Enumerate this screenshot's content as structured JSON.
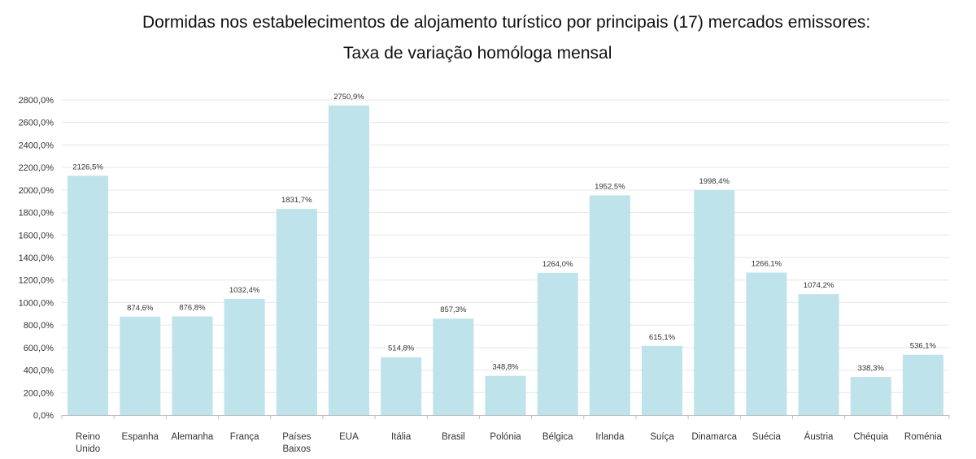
{
  "chart_data": {
    "type": "bar",
    "title": "Dormidas nos estabelecimentos de alojamento turístico por principais (17) mercados emissores:",
    "subtitle": "Taxa de variação homóloga mensal",
    "xlabel": "",
    "ylabel": "",
    "categories": [
      "Reino Unido",
      "Espanha",
      "Alemanha",
      "França",
      "Países Baixos",
      "EUA",
      "Itália",
      "Brasil",
      "Polónia",
      "Bélgica",
      "Irlanda",
      "Suíça",
      "Dinamarca",
      "Suécia",
      "Áustria",
      "Chéquia",
      "Roménia"
    ],
    "category_lines": [
      [
        "Reino",
        "Unido"
      ],
      [
        "Espanha"
      ],
      [
        "Alemanha"
      ],
      [
        "França"
      ],
      [
        "Países",
        "Baixos"
      ],
      [
        "EUA"
      ],
      [
        "Itália"
      ],
      [
        "Brasil"
      ],
      [
        "Polónia"
      ],
      [
        "Bélgica"
      ],
      [
        "Irlanda"
      ],
      [
        "Suíça"
      ],
      [
        "Dinamarca"
      ],
      [
        "Suécia"
      ],
      [
        "Áustria"
      ],
      [
        "Chéquia"
      ],
      [
        "Roménia"
      ]
    ],
    "values": [
      2126.5,
      874.6,
      876.8,
      1032.4,
      1831.7,
      2750.9,
      514.8,
      857.3,
      348.8,
      1264.0,
      1952.5,
      615.1,
      1998.4,
      1266.1,
      1074.2,
      338.3,
      536.1
    ],
    "value_labels": [
      "2126,5%",
      "874,6%",
      "876,8%",
      "1032,4%",
      "1831,7%",
      "2750,9%",
      "514,8%",
      "857,3%",
      "348,8%",
      "1264,0%",
      "1952,5%",
      "615,1%",
      "1998,4%",
      "1266,1%",
      "1074,2%",
      "338,3%",
      "536,1%"
    ],
    "yticks": [
      0,
      200,
      400,
      600,
      800,
      1000,
      1200,
      1400,
      1600,
      1800,
      2000,
      2200,
      2400,
      2600,
      2800
    ],
    "ytick_labels": [
      "0,0%",
      "200,0%",
      "400,0%",
      "600,0%",
      "800,0%",
      "1000,0%",
      "1200,0%",
      "1400,0%",
      "1600,0%",
      "1800,0%",
      "2000,0%",
      "2200,0%",
      "2400,0%",
      "2600,0%",
      "2800,0%"
    ],
    "ylim": [
      0,
      2800
    ],
    "grid": true,
    "legend": "none",
    "bar_color": "#bfe3ea",
    "grid_color": "#e6e6e6",
    "axis_color": "#bfbfbf"
  }
}
